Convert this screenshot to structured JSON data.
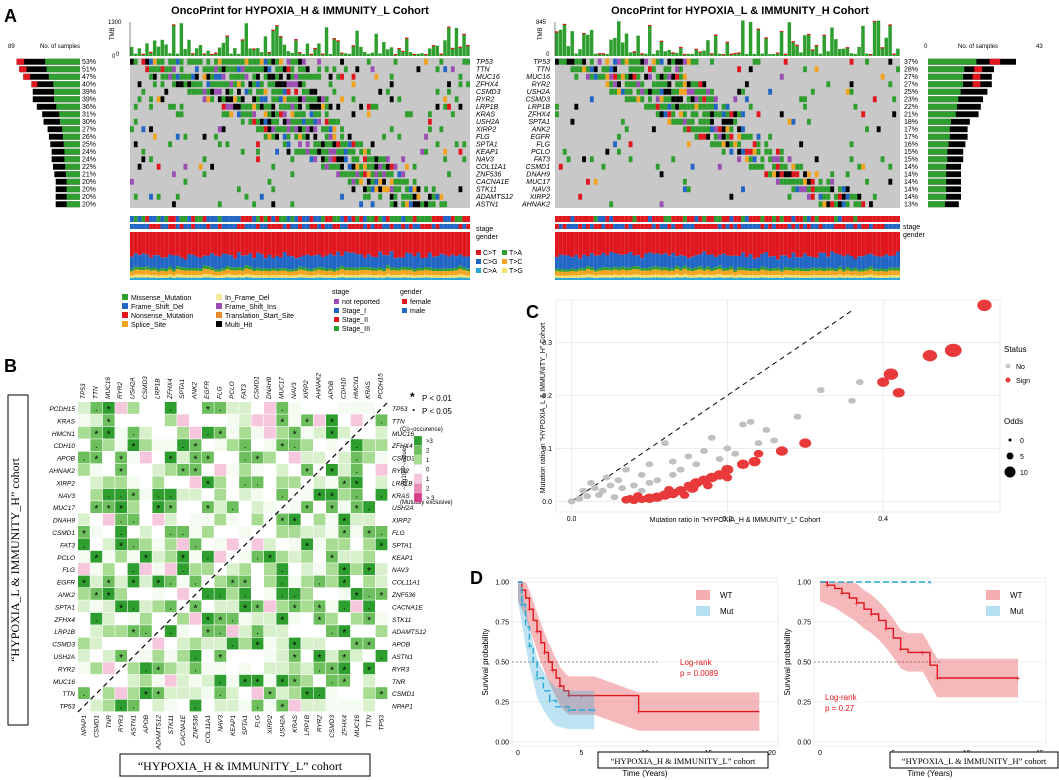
{
  "panels": {
    "a": "A",
    "b": "B",
    "c": "C",
    "d": "D"
  },
  "colors": {
    "missense": "#2e9e2e",
    "frameshift_del": "#2166c4",
    "nonsense": "#e0171e",
    "splice": "#f2a31f",
    "inframe_del": "#f2e99a",
    "frameshift_ins": "#9b4fb4",
    "translation_start": "#e98930",
    "multi_hit": "#000000",
    "grey": "#c8c8c8",
    "sign_red": "#e83a3a",
    "wt_red": "#e0171e",
    "mut_blue": "#29a6d6"
  },
  "panel_a": {
    "left": {
      "title": "OncoPrint for HYPOXIA_H & IMMUNITY_L Cohort",
      "tmb_label": "TMB",
      "tmb_max": "1300",
      "tmb_min": "0",
      "samples_label": "No. of samples",
      "samples_max": "89",
      "samples_min": "0",
      "genes": [
        "TP53",
        "TTN",
        "MUC16",
        "ZFHX4",
        "CSMD3",
        "RYR2",
        "LRP1B",
        "KRAS",
        "USH2A",
        "XIRP2",
        "FLG",
        "SPTA1",
        "KEAP1",
        "NAV3",
        "COL11A1",
        "ZNF536",
        "CACNA1E",
        "STK11",
        "ADAMTS12",
        "ASTN1"
      ],
      "percents": [
        "53%",
        "51%",
        "47%",
        "40%",
        "39%",
        "39%",
        "36%",
        "31%",
        "30%",
        "27%",
        "26%",
        "25%",
        "24%",
        "24%",
        "22%",
        "21%",
        "20%",
        "20%",
        "20%",
        "20%"
      ],
      "bar_values": [
        47,
        45,
        42,
        36,
        35,
        35,
        32,
        28,
        27,
        24,
        23,
        22,
        21,
        21,
        20,
        19,
        18,
        18,
        18,
        18
      ]
    },
    "right": {
      "title": "OncoPrint for HYPOXIA_L & IMMUNITY_H Cohort",
      "tmb_label": "TMB",
      "tmb_max": "845",
      "tmb_min": "0",
      "samples_label": "No. of samples",
      "samples_max": "43",
      "samples_min": "0",
      "genes": [
        "TP53",
        "TTN",
        "MUC16",
        "RYR2",
        "USH2A",
        "CSMD3",
        "LRP1B",
        "ZFHX4",
        "SPTA1",
        "ANK2",
        "EGFR",
        "FLG",
        "PCLO",
        "FAT3",
        "CSMD1",
        "DNAH9",
        "MUC17",
        "NAV3",
        "XIRP2",
        "AHNAK2"
      ],
      "percents": [
        "37%",
        "28%",
        "27%",
        "27%",
        "25%",
        "23%",
        "22%",
        "21%",
        "18%",
        "17%",
        "17%",
        "16%",
        "15%",
        "15%",
        "14%",
        "14%",
        "14%",
        "14%",
        "14%",
        "13%"
      ],
      "bar_values": [
        40,
        30,
        29,
        29,
        27,
        25,
        24,
        23,
        19,
        18,
        18,
        17,
        16,
        16,
        15,
        15,
        15,
        15,
        15,
        14
      ]
    },
    "track_labels": [
      "stage",
      "gender"
    ],
    "snv_legend": [
      {
        "label": "C>T",
        "color": "#e0171e"
      },
      {
        "label": "T>A",
        "color": "#2e9e2e"
      },
      {
        "label": "C>G",
        "color": "#2166c4"
      },
      {
        "label": "T>C",
        "color": "#f2a31f"
      },
      {
        "label": "C>A",
        "color": "#29a6d6"
      },
      {
        "label": "T>G",
        "color": "#f2e06a"
      }
    ],
    "mutation_legend": [
      {
        "label": "Missense_Mutation",
        "color": "#2e9e2e"
      },
      {
        "label": "Frame_Shift_Del",
        "color": "#2166c4"
      },
      {
        "label": "Nonsense_Mutation",
        "color": "#e0171e"
      },
      {
        "label": "Splice_Site",
        "color": "#f2a31f"
      },
      {
        "label": "In_Frame_Del",
        "color": "#f2e99a"
      },
      {
        "label": "Frame_Shift_Ins",
        "color": "#9b4fb4"
      },
      {
        "label": "Translation_Start_Site",
        "color": "#e98930"
      },
      {
        "label": "Multi_Hit",
        "color": "#000000"
      }
    ],
    "stage_legend": {
      "title": "stage",
      "items": [
        {
          "label": "not reported",
          "color": "#9b4fb4"
        },
        {
          "label": "Stage_I",
          "color": "#2166c4"
        },
        {
          "label": "Stage_II",
          "color": "#e0171e"
        },
        {
          "label": "Stage_III",
          "color": "#2e9e2e"
        }
      ]
    },
    "gender_legend": {
      "title": "gender",
      "items": [
        {
          "label": "female",
          "color": "#e0171e"
        },
        {
          "label": "male",
          "color": "#2166c4"
        }
      ]
    }
  },
  "panel_b": {
    "top_genes": [
      "TP53",
      "TTN",
      "MUC16",
      "RYR2",
      "USH2A",
      "CSMD3",
      "LRP1B",
      "ZFHX4",
      "SPTA1",
      "ANK2",
      "EGFR",
      "FLG",
      "PCLO",
      "FAT3",
      "CSMD1",
      "DNAH9",
      "MUC17",
      "NAV3",
      "XIRP2",
      "AHNAK2",
      "APOB",
      "CDH10",
      "HMCN1",
      "KRAS",
      "PCDH15"
    ],
    "left_genes": [
      "PCDH15",
      "KRAS",
      "HMCN1",
      "CDH10",
      "APOB",
      "AHNAK2",
      "XIRP2",
      "NAV3",
      "MUC17",
      "DNAH9",
      "CSMD1",
      "FAT3",
      "PCLO",
      "FLG",
      "EGFR",
      "ANK2",
      "SPTA1",
      "ZFHX4",
      "LRP1B",
      "CSMD3",
      "USH2A",
      "RYR2",
      "MUC16",
      "TTN",
      "TP53"
    ],
    "right_genes": [
      "TP53",
      "TTN",
      "MUC16",
      "ZFHX4",
      "CSMD3",
      "RYR2",
      "LRP1B",
      "KRAS",
      "USH2A",
      "XIRP2",
      "FLG",
      "SPTA1",
      "KEAP1",
      "NAV3",
      "COL11A1",
      "ZNF536",
      "CACNA1E",
      "STK11",
      "ADAMTS12",
      "APOB",
      "ASTN1",
      "RYR3",
      "TNR",
      "CSMD1",
      "NPAP1"
    ],
    "bottom_genes": [
      "NPAP1",
      "CSMD1",
      "TNR",
      "RYR3",
      "ASTN1",
      "APOB",
      "ADAMTS12",
      "STK11",
      "CACNA1E",
      "ZNF536",
      "COL11A1",
      "NAV3",
      "KEAP1",
      "SPTA1",
      "FLG",
      "XIRP2",
      "USH2A",
      "KRAS",
      "LRP1B",
      "RYR2",
      "CSMD3",
      "ZFHX4",
      "MUC16",
      "TTN",
      "TP53"
    ],
    "left_cohort": "“HYPOXIA_L & IMMUNITY_H” cohort",
    "bottom_cohort": "“HYPOXIA_H & IMMUNITY_L” cohort",
    "p_legend": [
      {
        "symbol": "*",
        "label": "P < 0.01"
      },
      {
        "symbol": "·",
        "label": "P < 0.05"
      }
    ],
    "colorbar": {
      "top_label": "(Co−occurence)",
      "bottom_label": "(Mutually exclusive)",
      "axis_label": "−log10(P−value)",
      "ticks": [
        ">3",
        "2",
        "1",
        "0",
        "1",
        "2",
        "> 3"
      ]
    }
  },
  "panel_c": {
    "chart_data": {
      "type": "scatter",
      "xlabel": "Mutation ratio in \"HYPOXIA_H  & IMMUNITY_L\"  Cohort",
      "ylabel": "Mutation ratio in \"HYPOXIA_L  & IMMUNITY_H\" Cohort",
      "xlim": [
        -0.02,
        0.55
      ],
      "ylim": [
        -0.02,
        0.38
      ],
      "xticks": [
        "0.0",
        "0.2",
        "0.4"
      ],
      "yticks": [
        "0.0",
        "0.1",
        "0.2",
        "0.3"
      ],
      "legend_status_title": "Status",
      "legend_status": [
        {
          "label": "No",
          "color": "#c8c8c8"
        },
        {
          "label": "Sign",
          "color": "#e83a3a"
        }
      ],
      "legend_odds_title": "Odds",
      "legend_odds": [
        "0",
        "5",
        "10"
      ],
      "series": [
        {
          "name": "Sign",
          "points": [
            [
              0.53,
              0.37,
              6
            ],
            [
              0.49,
              0.285,
              7
            ],
            [
              0.46,
              0.275,
              6
            ],
            [
              0.41,
              0.24,
              6
            ],
            [
              0.4,
              0.225,
              5
            ],
            [
              0.42,
              0.205,
              5
            ],
            [
              0.3,
              0.11,
              5
            ],
            [
              0.27,
              0.095,
              5
            ],
            [
              0.24,
              0.09,
              4
            ],
            [
              0.235,
              0.075,
              5
            ],
            [
              0.22,
              0.07,
              5
            ],
            [
              0.2,
              0.06,
              5
            ],
            [
              0.19,
              0.05,
              5
            ],
            [
              0.18,
              0.045,
              5
            ],
            [
              0.17,
              0.04,
              5
            ],
            [
              0.16,
              0.035,
              5
            ],
            [
              0.155,
              0.025,
              5
            ],
            [
              0.15,
              0.03,
              4
            ],
            [
              0.14,
              0.02,
              5
            ],
            [
              0.13,
              0.015,
              5
            ],
            [
              0.125,
              0.022,
              4
            ],
            [
              0.12,
              0.012,
              5
            ],
            [
              0.11,
              0.008,
              5
            ],
            [
              0.1,
              0.006,
              5
            ],
            [
              0.09,
              0.004,
              4
            ],
            [
              0.085,
              0.01,
              4
            ],
            [
              0.08,
              0.002,
              4
            ],
            [
              0.075,
              0.005,
              4
            ],
            [
              0.07,
              0.003,
              4
            ],
            [
              0.2,
              0.045,
              4
            ],
            [
              0.175,
              0.03,
              4
            ],
            [
              0.145,
              0.012,
              4
            ]
          ]
        },
        {
          "name": "No",
          "points": [
            [
              0.37,
              0.225,
              3
            ],
            [
              0.32,
              0.21,
              3
            ],
            [
              0.36,
              0.19,
              3
            ],
            [
              0.29,
              0.16,
              3
            ],
            [
              0.25,
              0.135,
              3
            ],
            [
              0.24,
              0.11,
              3
            ],
            [
              0.23,
              0.15,
              3
            ],
            [
              0.22,
              0.145,
              3
            ],
            [
              0.2,
              0.1,
              3
            ],
            [
              0.18,
              0.12,
              3
            ],
            [
              0.17,
              0.095,
              3
            ],
            [
              0.15,
              0.085,
              3
            ],
            [
              0.12,
              0.11,
              3
            ],
            [
              0.13,
              0.075,
              3
            ],
            [
              0.1,
              0.07,
              3
            ],
            [
              0.09,
              0.05,
              3
            ],
            [
              0.07,
              0.06,
              3
            ],
            [
              0.06,
              0.04,
              3
            ],
            [
              0.05,
              0.03,
              3
            ],
            [
              0.04,
              0.02,
              3
            ],
            [
              0.03,
              0.025,
              3
            ],
            [
              0.02,
              0.01,
              3
            ],
            [
              0.01,
              0.005,
              3
            ],
            [
              0.0,
              0.0,
              3
            ],
            [
              0.015,
              0.02,
              3
            ],
            [
              0.035,
              0.012,
              3
            ],
            [
              0.055,
              0.008,
              3
            ],
            [
              0.08,
              0.03,
              3
            ],
            [
              0.11,
              0.04,
              3
            ],
            [
              0.14,
              0.06,
              3
            ],
            [
              0.16,
              0.07,
              3
            ],
            [
              0.19,
              0.08,
              3
            ],
            [
              0.21,
              0.09,
              3
            ],
            [
              0.26,
              0.115,
              3
            ],
            [
              0.13,
              0.05,
              3
            ],
            [
              0.1,
              0.035,
              3
            ],
            [
              0.045,
              0.045,
              3
            ],
            [
              0.065,
              0.025,
              3
            ],
            [
              0.025,
              0.035,
              3
            ],
            [
              0.09,
              0.02,
              3
            ]
          ]
        }
      ],
      "reference_line": "y = x"
    }
  },
  "panel_d": {
    "chart_data": [
      {
        "type": "line",
        "title": "",
        "xlabel": "Time (Years)",
        "ylabel": "Survival probability",
        "xlim": [
          0,
          20
        ],
        "ylim": [
          0,
          1
        ],
        "xticks": [
          "0",
          "5",
          "10",
          "15",
          "20"
        ],
        "yticks": [
          "0.00",
          "0.25",
          "0.50",
          "0.75",
          "1.00"
        ],
        "legend": [
          {
            "label": "WT",
            "color": "#e0171e"
          },
          {
            "label": "Mut",
            "color": "#29a6d6"
          }
        ],
        "annotation": [
          "Log-rank",
          "p = 0.0089"
        ],
        "cohort_box": "“HYPOXIA_H & IMMUNITY_L” cohort",
        "series": [
          {
            "name": "WT",
            "x": [
              0,
              0.3,
              0.6,
              0.9,
              1.2,
              1.5,
              1.8,
              2.1,
              2.4,
              2.7,
              3.0,
              3.3,
              3.6,
              4.0,
              4.5,
              5.0,
              6.0,
              9.5,
              19.0
            ],
            "y": [
              1.0,
              0.95,
              0.9,
              0.83,
              0.76,
              0.69,
              0.62,
              0.56,
              0.5,
              0.45,
              0.4,
              0.35,
              0.32,
              0.29,
              0.29,
              0.29,
              0.29,
              0.19,
              0.19
            ]
          },
          {
            "name": "Mut",
            "x": [
              0,
              0.3,
              0.6,
              0.9,
              1.2,
              1.5,
              2.0,
              2.5,
              3.0,
              4.0,
              5.0,
              6.0
            ],
            "y": [
              1.0,
              0.86,
              0.72,
              0.6,
              0.5,
              0.4,
              0.32,
              0.26,
              0.22,
              0.2,
              0.2,
              0.2
            ]
          }
        ]
      },
      {
        "type": "line",
        "xlabel": "Time (Years)",
        "ylabel": "Survival probability",
        "xlim": [
          0,
          15
        ],
        "ylim": [
          0,
          1
        ],
        "xticks": [
          "0",
          "5",
          "10",
          "15"
        ],
        "yticks": [
          "0.00",
          "0.25",
          "0.50",
          "0.75",
          "1.00"
        ],
        "legend": [
          {
            "label": "WT",
            "color": "#e0171e"
          },
          {
            "label": "Mut",
            "color": "#29a6d6"
          }
        ],
        "annotation": [
          "Log-rank",
          "p = 0.27"
        ],
        "cohort_box": "“HYPOXIA_L & IMMUNITY_H” cohort",
        "series": [
          {
            "name": "WT",
            "x": [
              0,
              0.5,
              1,
              1.5,
              2,
              2.5,
              3,
              3.5,
              4,
              4.5,
              5,
              5.5,
              6,
              7,
              7.5,
              8,
              9.5,
              13.5
            ],
            "y": [
              1.0,
              0.98,
              0.96,
              0.93,
              0.9,
              0.87,
              0.83,
              0.8,
              0.76,
              0.71,
              0.65,
              0.58,
              0.56,
              0.56,
              0.48,
              0.4,
              0.4,
              0.4
            ]
          },
          {
            "name": "Mut",
            "x": [
              0,
              7.5
            ],
            "y": [
              1.0,
              1.0
            ]
          }
        ]
      }
    ]
  }
}
